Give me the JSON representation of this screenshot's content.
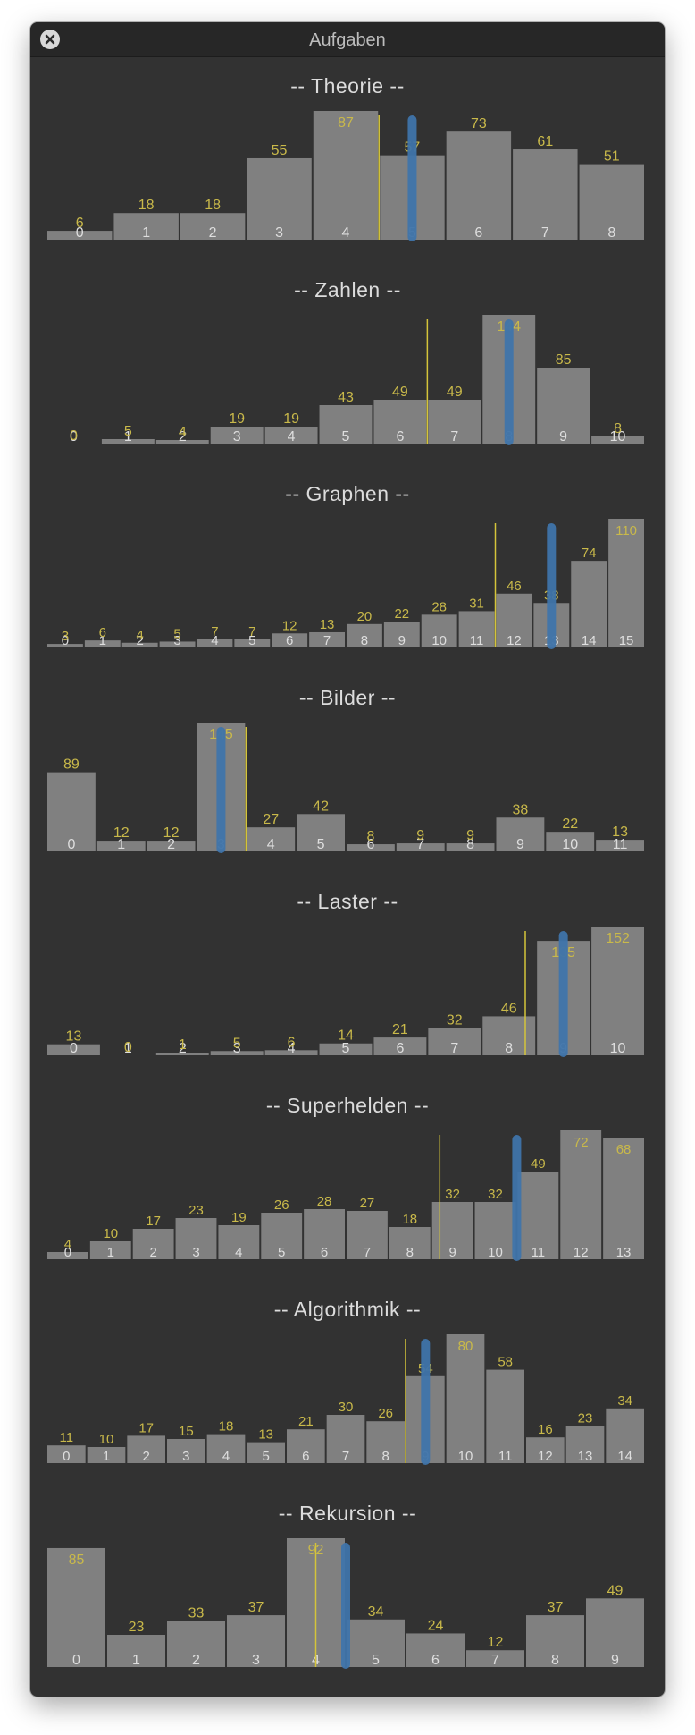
{
  "window": {
    "title": "Aufgaben",
    "close_icon": "close-icon"
  },
  "colors": {
    "bar": "#808080",
    "value_label": "#c9b94a",
    "index_label": "#dedede",
    "marker_yellow": "#d4c43a",
    "marker_blue": "#3f74aa"
  },
  "chart_data": [
    {
      "type": "bar",
      "title": "-- Theorie --",
      "categories": [
        "0",
        "1",
        "2",
        "3",
        "4",
        "5",
        "6",
        "7",
        "8"
      ],
      "values": [
        6,
        18,
        18,
        55,
        87,
        57,
        73,
        61,
        51
      ],
      "yellow_marker": 4.5,
      "blue_marker": 5
    },
    {
      "type": "bar",
      "title": "-- Zahlen --",
      "categories": [
        "0",
        "1",
        "2",
        "3",
        "4",
        "5",
        "6",
        "7",
        "8",
        "9",
        "10"
      ],
      "values": [
        0,
        5,
        4,
        19,
        19,
        43,
        49,
        49,
        144,
        85,
        8
      ],
      "yellow_marker": 6.5,
      "blue_marker": 8
    },
    {
      "type": "bar",
      "title": "-- Graphen --",
      "categories": [
        "0",
        "1",
        "2",
        "3",
        "4",
        "5",
        "6",
        "7",
        "8",
        "9",
        "10",
        "11",
        "12",
        "13",
        "14",
        "15"
      ],
      "values": [
        3,
        6,
        4,
        5,
        7,
        7,
        12,
        13,
        20,
        22,
        28,
        31,
        46,
        38,
        74,
        110
      ],
      "yellow_marker": 11.5,
      "blue_marker": 13
    },
    {
      "type": "bar",
      "title": "-- Bilder --",
      "categories": [
        "0",
        "1",
        "2",
        "3",
        "4",
        "5",
        "6",
        "7",
        "8",
        "9",
        "10",
        "11"
      ],
      "values": [
        89,
        12,
        12,
        145,
        27,
        42,
        8,
        9,
        9,
        38,
        22,
        13
      ],
      "yellow_marker": 3.5,
      "blue_marker": 3
    },
    {
      "type": "bar",
      "title": "-- Laster --",
      "categories": [
        "0",
        "1",
        "2",
        "3",
        "4",
        "5",
        "6",
        "7",
        "8",
        "9",
        "10"
      ],
      "values": [
        13,
        0,
        1,
        5,
        6,
        14,
        21,
        32,
        46,
        135,
        152
      ],
      "yellow_marker": 8.3,
      "blue_marker": 9
    },
    {
      "type": "bar",
      "title": "-- Superhelden --",
      "categories": [
        "0",
        "1",
        "2",
        "3",
        "4",
        "5",
        "6",
        "7",
        "8",
        "9",
        "10",
        "11",
        "12",
        "13"
      ],
      "values": [
        4,
        10,
        17,
        23,
        19,
        26,
        28,
        27,
        18,
        32,
        32,
        49,
        72,
        68
      ],
      "yellow_marker": 8.7,
      "blue_marker": 10.5
    },
    {
      "type": "bar",
      "title": "-- Algorithmik --",
      "categories": [
        "0",
        "1",
        "2",
        "3",
        "4",
        "5",
        "6",
        "7",
        "8",
        "9",
        "10",
        "11",
        "12",
        "13",
        "14"
      ],
      "values": [
        11,
        10,
        17,
        15,
        18,
        13,
        21,
        30,
        26,
        54,
        80,
        58,
        16,
        23,
        34
      ],
      "yellow_marker": 8.5,
      "blue_marker": 9
    },
    {
      "type": "bar",
      "title": "-- Rekursion --",
      "categories": [
        "0",
        "1",
        "2",
        "3",
        "4",
        "5",
        "6",
        "7",
        "8",
        "9"
      ],
      "values": [
        85,
        23,
        33,
        37,
        92,
        34,
        24,
        12,
        37,
        49
      ],
      "yellow_marker": 4,
      "blue_marker": 4.5
    }
  ]
}
